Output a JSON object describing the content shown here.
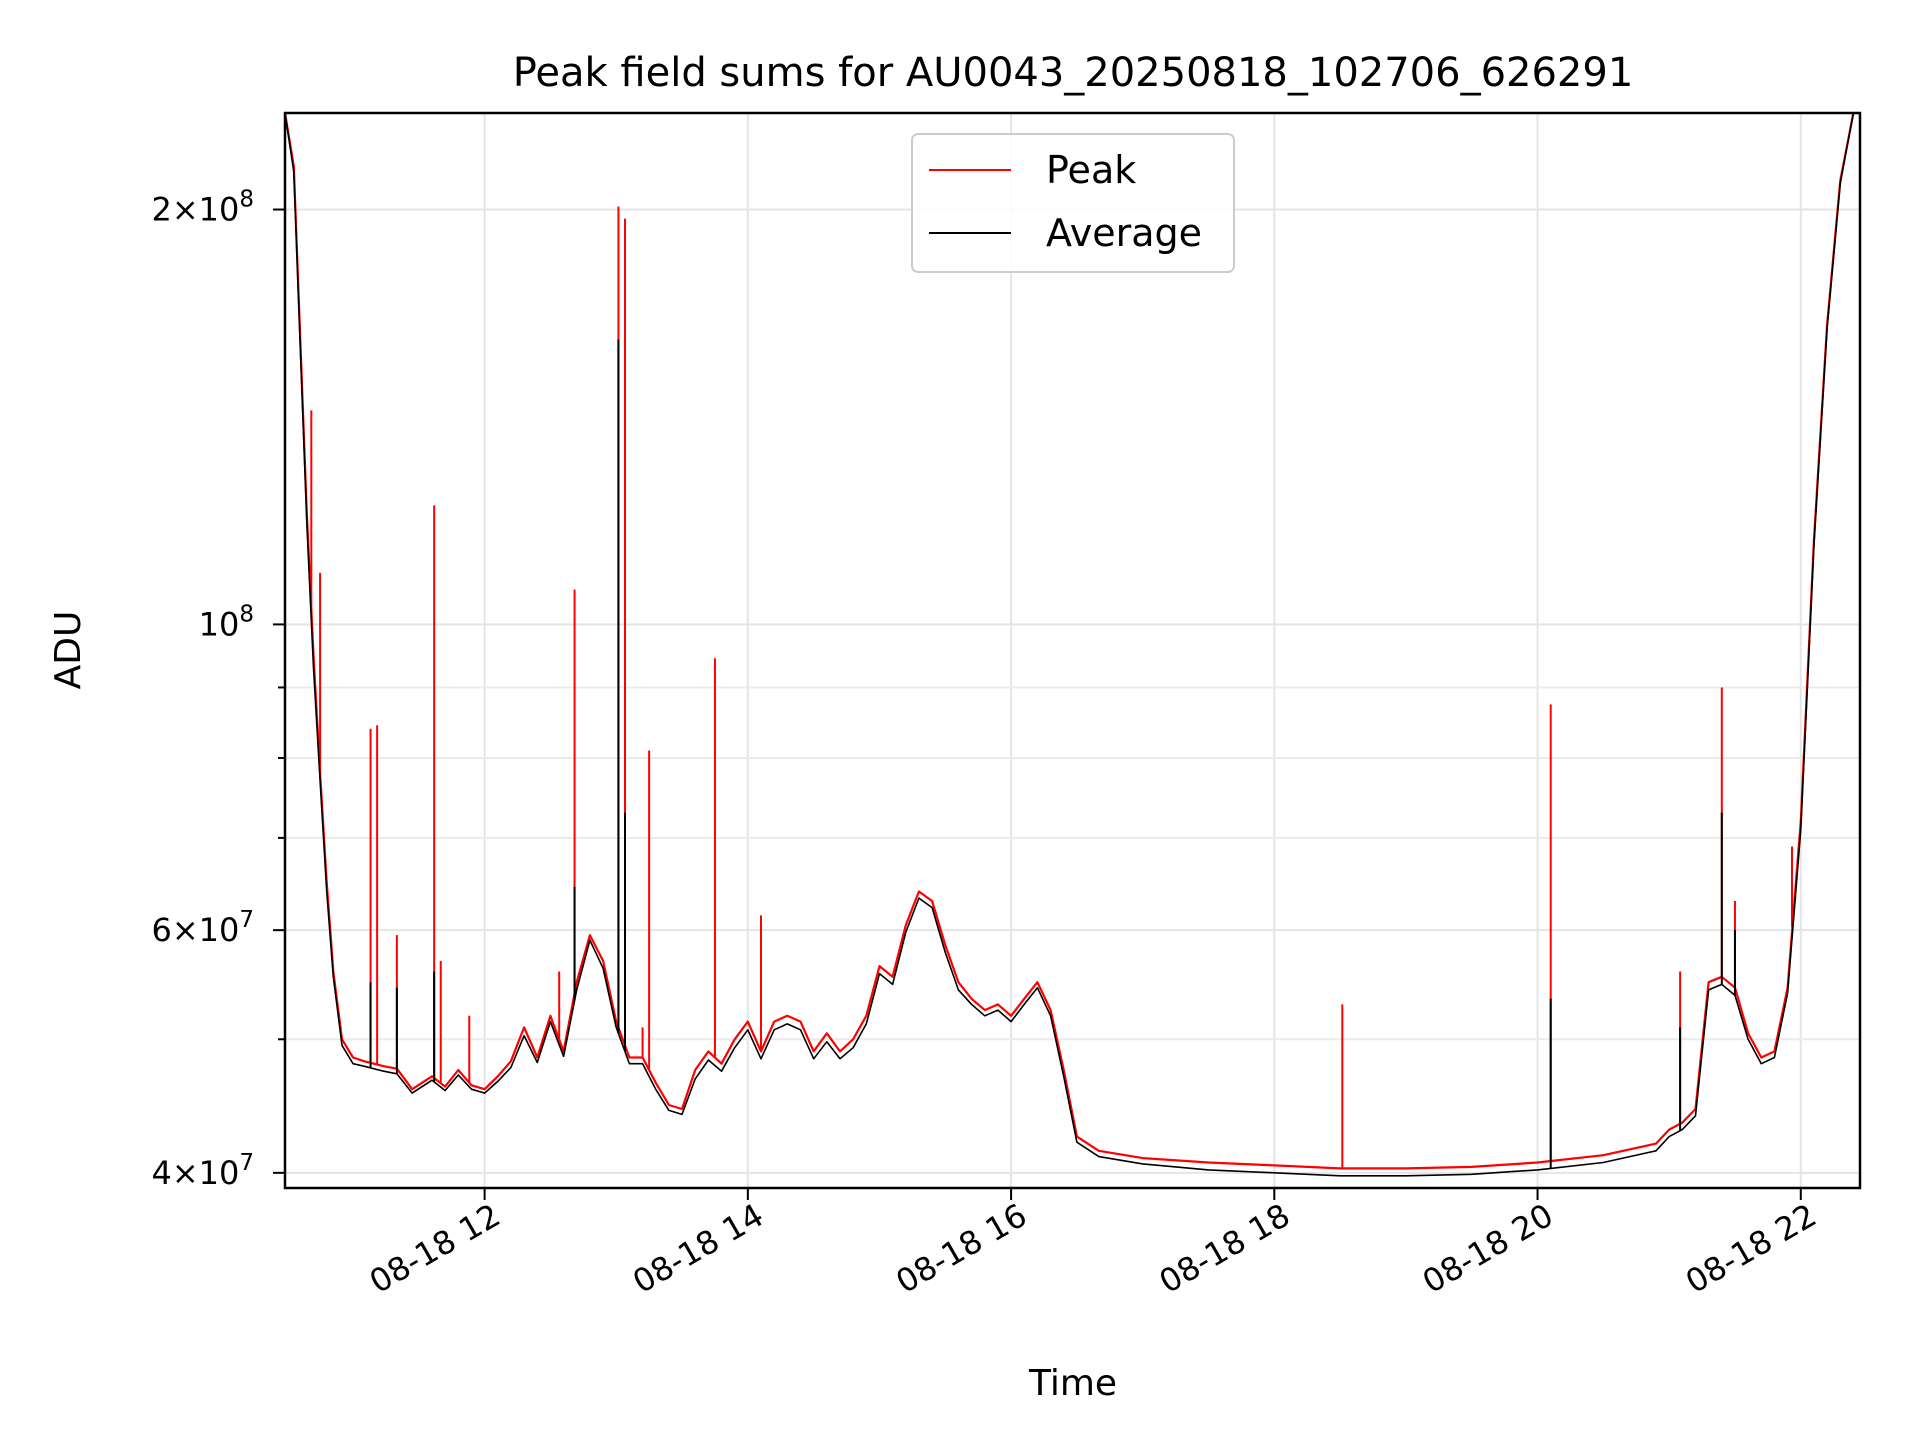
{
  "chart_data": {
    "type": "line",
    "title": "Peak field sums for AU0043_20250818_102706_626291",
    "xlabel": "Time",
    "ylabel": "ADU",
    "yscale": "log",
    "grid": true,
    "legend_position": "top-center",
    "xlim": [
      "2025-08-18 10:29",
      "2025-08-18 22:27"
    ],
    "ylim": [
      39000000,
      235000000
    ],
    "x_ticks": [
      {
        "value": "2025-08-18 12:00",
        "label": "08-18 12"
      },
      {
        "value": "2025-08-18 14:00",
        "label": "08-18 14"
      },
      {
        "value": "2025-08-18 16:00",
        "label": "08-18 16"
      },
      {
        "value": "2025-08-18 18:00",
        "label": "08-18 18"
      },
      {
        "value": "2025-08-18 20:00",
        "label": "08-18 20"
      },
      {
        "value": "2025-08-18 22:00",
        "label": "08-18 22"
      }
    ],
    "y_major_ticks": [
      {
        "value": 40000000,
        "base": "4",
        "sup": "7"
      },
      {
        "value": 60000000,
        "base": "6",
        "sup": "7"
      },
      {
        "value": 100000000,
        "base": "",
        "sup": "8"
      },
      {
        "value": 200000000,
        "base": "2",
        "sup": "8"
      }
    ],
    "y_minor_ticks": [
      50000000,
      70000000,
      80000000,
      90000000
    ],
    "series": [
      {
        "name": "Peak",
        "color": "#ff0000",
        "x": [
          "2025-08-18 10:29",
          "2025-08-18 10:33",
          "2025-08-18 10:36",
          "2025-08-18 10:39",
          "2025-08-18 10:42",
          "2025-08-18 10:45",
          "2025-08-18 10:48",
          "2025-08-18 10:51",
          "2025-08-18 10:55",
          "2025-08-18 11:00",
          "2025-08-18 11:05",
          "2025-08-18 11:14",
          "2025-08-18 11:20",
          "2025-08-18 11:27",
          "2025-08-18 11:36",
          "2025-08-18 11:42",
          "2025-08-18 11:48",
          "2025-08-18 11:54",
          "2025-08-18 12:00",
          "2025-08-18 12:06",
          "2025-08-18 12:12",
          "2025-08-18 12:18",
          "2025-08-18 12:24",
          "2025-08-18 12:30",
          "2025-08-18 12:36",
          "2025-08-18 12:42",
          "2025-08-18 12:48",
          "2025-08-18 12:54",
          "2025-08-18 13:00",
          "2025-08-18 13:06",
          "2025-08-18 13:12",
          "2025-08-18 13:18",
          "2025-08-18 13:24",
          "2025-08-18 13:30",
          "2025-08-18 13:36",
          "2025-08-18 13:42",
          "2025-08-18 13:48",
          "2025-08-18 13:54",
          "2025-08-18 14:00",
          "2025-08-18 14:06",
          "2025-08-18 14:12",
          "2025-08-18 14:18",
          "2025-08-18 14:24",
          "2025-08-18 14:30",
          "2025-08-18 14:36",
          "2025-08-18 14:42",
          "2025-08-18 14:48",
          "2025-08-18 14:54",
          "2025-08-18 15:00",
          "2025-08-18 15:06",
          "2025-08-18 15:12",
          "2025-08-18 15:18",
          "2025-08-18 15:24",
          "2025-08-18 15:30",
          "2025-08-18 15:36",
          "2025-08-18 15:42",
          "2025-08-18 15:48",
          "2025-08-18 15:54",
          "2025-08-18 16:00",
          "2025-08-18 16:06",
          "2025-08-18 16:12",
          "2025-08-18 16:18",
          "2025-08-18 16:24",
          "2025-08-18 16:30",
          "2025-08-18 16:40",
          "2025-08-18 17:00",
          "2025-08-18 17:30",
          "2025-08-18 18:00",
          "2025-08-18 18:30",
          "2025-08-18 19:00",
          "2025-08-18 19:30",
          "2025-08-18 20:00",
          "2025-08-18 20:30",
          "2025-08-18 20:54",
          "2025-08-18 21:00",
          "2025-08-18 21:06",
          "2025-08-18 21:12",
          "2025-08-18 21:18",
          "2025-08-18 21:24",
          "2025-08-18 21:30",
          "2025-08-18 21:36",
          "2025-08-18 21:42",
          "2025-08-18 21:48",
          "2025-08-18 21:54",
          "2025-08-18 22:00",
          "2025-08-18 22:06",
          "2025-08-18 22:12",
          "2025-08-18 22:18",
          "2025-08-18 22:24",
          "2025-08-18 22:27"
        ],
        "y": [
          235000000,
          215000000,
          160000000,
          120000000,
          95000000,
          78000000,
          65000000,
          56000000,
          50000000,
          48500000,
          48200000,
          47800000,
          47600000,
          46000000,
          47000000,
          46200000,
          47500000,
          46300000,
          46000000,
          47000000,
          48200000,
          51000000,
          48500000,
          52000000,
          49000000,
          55000000,
          59500000,
          57000000,
          51500000,
          48500000,
          48500000,
          46500000,
          44800000,
          44500000,
          47500000,
          49000000,
          48000000,
          50000000,
          51500000,
          49000000,
          51500000,
          52000000,
          51500000,
          49000000,
          50500000,
          49000000,
          50000000,
          52000000,
          56500000,
          55500000,
          60500000,
          64000000,
          63000000,
          58500000,
          55000000,
          53500000,
          52500000,
          53000000,
          52000000,
          53500000,
          55000000,
          52500000,
          47500000,
          42500000,
          41500000,
          41000000,
          40700000,
          40500000,
          40300000,
          40300000,
          40400000,
          40700000,
          41200000,
          42000000,
          43000000,
          43500000,
          44500000,
          55000000,
          55500000,
          54500000,
          50500000,
          48500000,
          49000000,
          54500000,
          72000000,
          115000000,
          165000000,
          210000000,
          235000000,
          235000000
        ],
        "spikes": [
          {
            "x": "2025-08-18 10:41",
            "y": 143000000
          },
          {
            "x": "2025-08-18 10:45",
            "y": 109000000
          },
          {
            "x": "2025-08-18 11:08",
            "y": 84000000
          },
          {
            "x": "2025-08-18 11:11",
            "y": 84500000
          },
          {
            "x": "2025-08-18 11:20",
            "y": 59500000
          },
          {
            "x": "2025-08-18 11:37",
            "y": 122000000
          },
          {
            "x": "2025-08-18 11:40",
            "y": 57000000
          },
          {
            "x": "2025-08-18 11:53",
            "y": 52000000
          },
          {
            "x": "2025-08-18 12:34",
            "y": 56000000
          },
          {
            "x": "2025-08-18 12:41",
            "y": 106000000
          },
          {
            "x": "2025-08-18 13:01",
            "y": 201000000
          },
          {
            "x": "2025-08-18 13:04",
            "y": 197000000
          },
          {
            "x": "2025-08-18 13:12",
            "y": 51000000
          },
          {
            "x": "2025-08-18 13:15",
            "y": 81000000
          },
          {
            "x": "2025-08-18 13:45",
            "y": 94500000
          },
          {
            "x": "2025-08-18 14:06",
            "y": 61500000
          },
          {
            "x": "2025-08-18 18:31",
            "y": 53000000
          },
          {
            "x": "2025-08-18 20:06",
            "y": 87500000
          },
          {
            "x": "2025-08-18 21:05",
            "y": 56000000
          },
          {
            "x": "2025-08-18 21:24",
            "y": 90000000
          },
          {
            "x": "2025-08-18 21:30",
            "y": 63000000
          },
          {
            "x": "2025-08-18 21:56",
            "y": 69000000
          }
        ]
      },
      {
        "name": "Average",
        "color": "#000000",
        "x": [
          "2025-08-18 10:29",
          "2025-08-18 10:33",
          "2025-08-18 10:36",
          "2025-08-18 10:39",
          "2025-08-18 10:42",
          "2025-08-18 10:45",
          "2025-08-18 10:48",
          "2025-08-18 10:51",
          "2025-08-18 10:55",
          "2025-08-18 11:00",
          "2025-08-18 11:05",
          "2025-08-18 11:14",
          "2025-08-18 11:20",
          "2025-08-18 11:27",
          "2025-08-18 11:36",
          "2025-08-18 11:42",
          "2025-08-18 11:48",
          "2025-08-18 11:54",
          "2025-08-18 12:00",
          "2025-08-18 12:06",
          "2025-08-18 12:12",
          "2025-08-18 12:18",
          "2025-08-18 12:24",
          "2025-08-18 12:30",
          "2025-08-18 12:36",
          "2025-08-18 12:42",
          "2025-08-18 12:48",
          "2025-08-18 12:54",
          "2025-08-18 13:00",
          "2025-08-18 13:06",
          "2025-08-18 13:12",
          "2025-08-18 13:18",
          "2025-08-18 13:24",
          "2025-08-18 13:30",
          "2025-08-18 13:36",
          "2025-08-18 13:42",
          "2025-08-18 13:48",
          "2025-08-18 13:54",
          "2025-08-18 14:00",
          "2025-08-18 14:06",
          "2025-08-18 14:12",
          "2025-08-18 14:18",
          "2025-08-18 14:24",
          "2025-08-18 14:30",
          "2025-08-18 14:36",
          "2025-08-18 14:42",
          "2025-08-18 14:48",
          "2025-08-18 14:54",
          "2025-08-18 15:00",
          "2025-08-18 15:06",
          "2025-08-18 15:12",
          "2025-08-18 15:18",
          "2025-08-18 15:24",
          "2025-08-18 15:30",
          "2025-08-18 15:36",
          "2025-08-18 15:42",
          "2025-08-18 15:48",
          "2025-08-18 15:54",
          "2025-08-18 16:00",
          "2025-08-18 16:06",
          "2025-08-18 16:12",
          "2025-08-18 16:18",
          "2025-08-18 16:24",
          "2025-08-18 16:30",
          "2025-08-18 16:40",
          "2025-08-18 17:00",
          "2025-08-18 17:30",
          "2025-08-18 18:00",
          "2025-08-18 18:30",
          "2025-08-18 19:00",
          "2025-08-18 19:30",
          "2025-08-18 20:00",
          "2025-08-18 20:30",
          "2025-08-18 20:54",
          "2025-08-18 21:00",
          "2025-08-18 21:06",
          "2025-08-18 21:12",
          "2025-08-18 21:18",
          "2025-08-18 21:24",
          "2025-08-18 21:30",
          "2025-08-18 21:36",
          "2025-08-18 21:42",
          "2025-08-18 21:48",
          "2025-08-18 21:54",
          "2025-08-18 22:00",
          "2025-08-18 22:06",
          "2025-08-18 22:12",
          "2025-08-18 22:18",
          "2025-08-18 22:24",
          "2025-08-18 22:27"
        ],
        "y": [
          235000000,
          213000000,
          158000000,
          118000000,
          93000000,
          77000000,
          64000000,
          55500000,
          49500000,
          48000000,
          47800000,
          47400000,
          47200000,
          45700000,
          46700000,
          45900000,
          47100000,
          46000000,
          45700000,
          46600000,
          47700000,
          50300000,
          48100000,
          51500000,
          48600000,
          54300000,
          59000000,
          56300000,
          51000000,
          48000000,
          48000000,
          46000000,
          44400000,
          44100000,
          46800000,
          48300000,
          47400000,
          49300000,
          50800000,
          48400000,
          50800000,
          51300000,
          50800000,
          48400000,
          49800000,
          48400000,
          49300000,
          51300000,
          55800000,
          54800000,
          59800000,
          63300000,
          62300000,
          57800000,
          54300000,
          53000000,
          52000000,
          52500000,
          51500000,
          53000000,
          54500000,
          52000000,
          47000000,
          42100000,
          41100000,
          40600000,
          40200000,
          40000000,
          39800000,
          39800000,
          39900000,
          40200000,
          40700000,
          41500000,
          42500000,
          43000000,
          44000000,
          54300000,
          54800000,
          53800000,
          50000000,
          48000000,
          48500000,
          54000000,
          71000000,
          114000000,
          164000000,
          209000000,
          235000000,
          235000000
        ],
        "spikes": [
          {
            "x": "2025-08-18 11:08",
            "y": 55000000
          },
          {
            "x": "2025-08-18 11:20",
            "y": 54500000
          },
          {
            "x": "2025-08-18 11:37",
            "y": 56000000
          },
          {
            "x": "2025-08-18 12:41",
            "y": 64500000
          },
          {
            "x": "2025-08-18 13:01",
            "y": 161000000
          },
          {
            "x": "2025-08-18 13:04",
            "y": 73000000
          },
          {
            "x": "2025-08-18 20:06",
            "y": 53500000
          },
          {
            "x": "2025-08-18 21:05",
            "y": 51000000
          },
          {
            "x": "2025-08-18 21:24",
            "y": 73000000
          },
          {
            "x": "2025-08-18 21:30",
            "y": 60000000
          }
        ]
      }
    ]
  }
}
